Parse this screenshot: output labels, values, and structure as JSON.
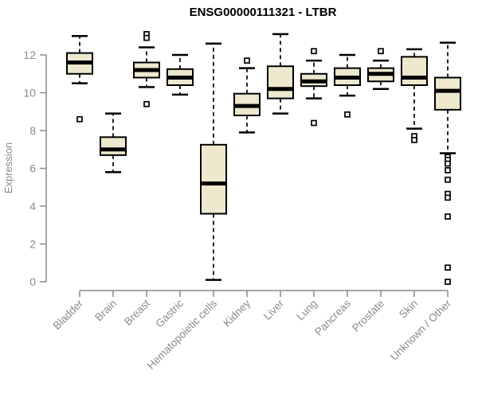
{
  "chart_data": {
    "type": "boxplot",
    "title": "ENSG00000111321 - LTBR",
    "ylabel": "Expression",
    "xlabel": "",
    "yticks": [
      0,
      2,
      4,
      6,
      8,
      10,
      12
    ],
    "ylim": [
      -0.3,
      13.3
    ],
    "grid": false,
    "legend": "none",
    "categories": [
      "Bladder",
      "Brain",
      "Breast",
      "Gastric",
      "Hematopoietic cells",
      "Kidney",
      "Liver",
      "Lung",
      "Pancreas",
      "Prostate",
      "Skin",
      "Unknown / Other"
    ],
    "series": [
      {
        "name": "Bladder",
        "low": 10.5,
        "q1": 11.0,
        "median": 11.6,
        "q3": 12.1,
        "high": 13.0,
        "outliers": [
          8.6
        ]
      },
      {
        "name": "Brain",
        "low": 5.8,
        "q1": 6.7,
        "median": 7.0,
        "q3": 7.65,
        "high": 8.9,
        "outliers": []
      },
      {
        "name": "Breast",
        "low": 10.3,
        "q1": 10.8,
        "median": 11.2,
        "q3": 11.6,
        "high": 12.4,
        "outliers": [
          13.1,
          12.9,
          9.4
        ]
      },
      {
        "name": "Gastric",
        "low": 9.9,
        "q1": 10.4,
        "median": 10.8,
        "q3": 11.25,
        "high": 12.0,
        "outliers": []
      },
      {
        "name": "Hematopoietic cells",
        "low": 0.1,
        "q1": 3.6,
        "median": 5.2,
        "q3": 7.25,
        "high": 12.6,
        "outliers": []
      },
      {
        "name": "Kidney",
        "low": 7.9,
        "q1": 8.8,
        "median": 9.3,
        "q3": 9.95,
        "high": 11.3,
        "outliers": [
          11.7
        ]
      },
      {
        "name": "Liver",
        "low": 8.9,
        "q1": 9.7,
        "median": 10.2,
        "q3": 11.4,
        "high": 13.1,
        "outliers": []
      },
      {
        "name": "Lung",
        "low": 9.7,
        "q1": 10.35,
        "median": 10.6,
        "q3": 11.0,
        "high": 11.7,
        "outliers": [
          12.2,
          8.4
        ]
      },
      {
        "name": "Pancreas",
        "low": 9.85,
        "q1": 10.4,
        "median": 10.8,
        "q3": 11.3,
        "high": 12.0,
        "outliers": [
          8.85
        ]
      },
      {
        "name": "Prostate",
        "low": 10.2,
        "q1": 10.6,
        "median": 11.0,
        "q3": 11.3,
        "high": 11.7,
        "outliers": [
          12.2
        ]
      },
      {
        "name": "Skin",
        "low": 8.1,
        "q1": 10.4,
        "median": 10.8,
        "q3": 11.9,
        "high": 12.3,
        "outliers": [
          7.7,
          7.5
        ]
      },
      {
        "name": "Unknown / Other",
        "low": 6.8,
        "q1": 9.1,
        "median": 10.1,
        "q3": 10.8,
        "high": 12.65,
        "outliers": [
          6.6,
          6.45,
          6.25,
          5.9,
          5.4,
          4.65,
          4.45,
          3.45,
          0.75,
          0.0
        ]
      }
    ],
    "colors": {
      "box_fill": "#EDE8CE",
      "box_border": "#000000",
      "median": "#000000",
      "whisker": "#000000",
      "outlier_border": "#000000",
      "axis": "#8A8A8A",
      "title": "#000000",
      "background": "#FFFFFF"
    }
  }
}
